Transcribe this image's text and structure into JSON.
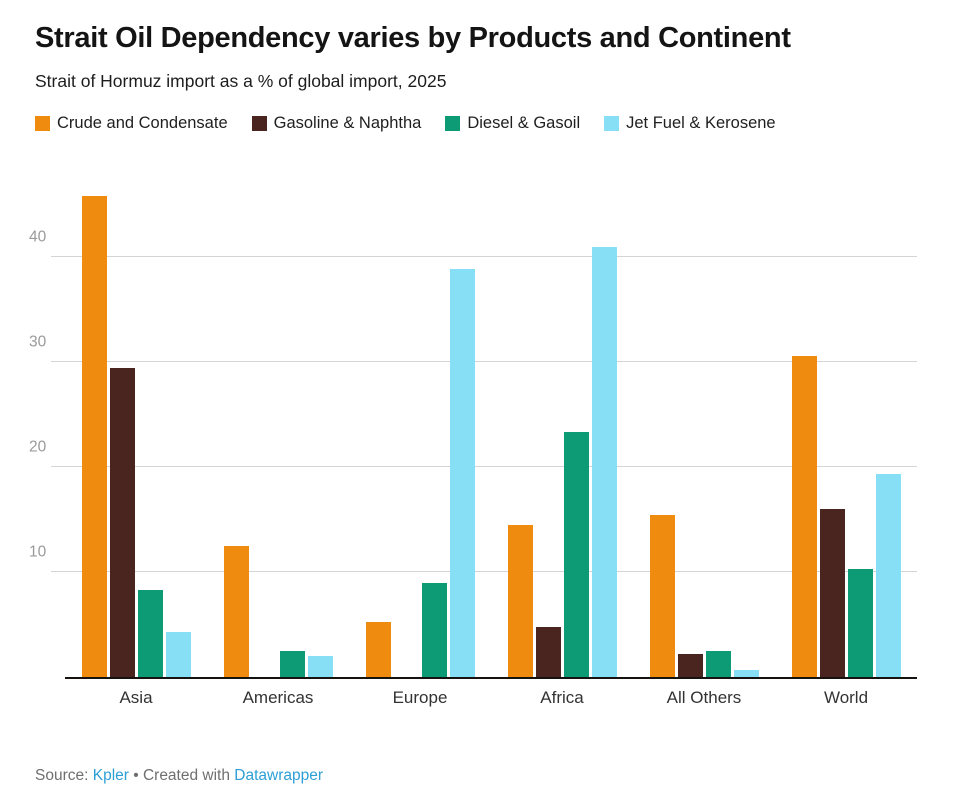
{
  "header": {
    "title": "Strait Oil Dependency varies by Products and Continent",
    "subtitle": "Strait of Hormuz import as a % of global import, 2025"
  },
  "chart_data": {
    "type": "bar",
    "title": "Strait Oil Dependency varies by Products and Continent",
    "subtitle": "Strait of Hormuz import as a % of global import, 2025",
    "categories": [
      "Asia",
      "Americas",
      "Europe",
      "Africa",
      "All Others",
      "World"
    ],
    "series": [
      {
        "name": "Crude and Condensate",
        "color": "#EF8B0E",
        "values": [
          45.8,
          12.5,
          5.3,
          14.5,
          15.5,
          30.6
        ]
      },
      {
        "name": "Gasoline & Naphtha",
        "color": "#4A241E",
        "values": [
          29.5,
          0,
          0,
          4.8,
          2.2,
          16.0
        ]
      },
      {
        "name": "Diesel & Gasoil",
        "color": "#0D9B76",
        "values": [
          8.3,
          2.5,
          9.0,
          23.4,
          2.5,
          10.3
        ]
      },
      {
        "name": "Jet Fuel & Kerosene",
        "color": "#87DFF5",
        "values": [
          4.3,
          2.0,
          38.9,
          41.0,
          0.7,
          19.4
        ]
      }
    ],
    "xlabel": "",
    "ylabel": "",
    "yticks": [
      10,
      20,
      30,
      40
    ],
    "ylim": [
      0,
      48
    ],
    "grid": true,
    "legend_position": "top"
  },
  "colors": {
    "grid": "#d4d4d4",
    "axis_line": "#16120f",
    "tick_label": "#9a9a9a",
    "link_blue": "#2D9FD6"
  },
  "footer": {
    "source_prefix": "Source: ",
    "source_link": "Kpler",
    "separator": " • Created with ",
    "tool_link": "Datawrapper"
  }
}
